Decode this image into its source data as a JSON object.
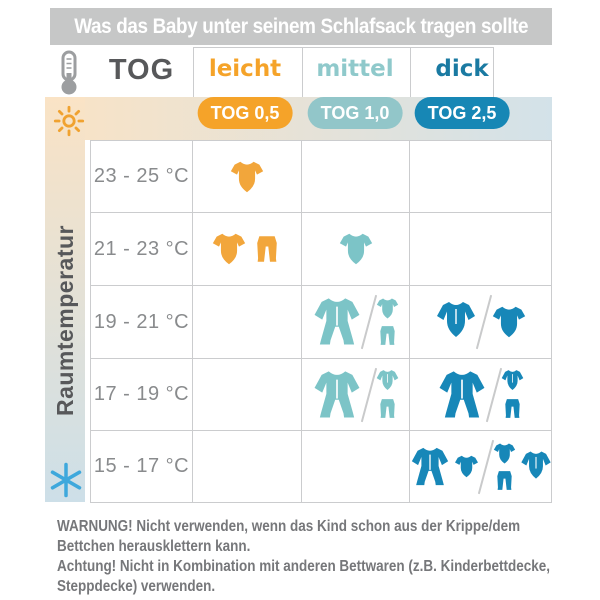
{
  "title": "Was das Baby unter seinem Schlafsack tragen sollte",
  "header": {
    "tog_label": "TOG",
    "columns": [
      {
        "id": "leicht",
        "label": "leicht",
        "badge": "TOG 0,5",
        "label_color": "#F5A329",
        "badge_color": "#F5A329",
        "icon_color": "#F2A63B"
      },
      {
        "id": "mittel",
        "label": "mittel",
        "badge": "TOG 1,0",
        "label_color": "#8FC9CB",
        "badge_color": "#92C6C9",
        "icon_color": "#7CC4C7"
      },
      {
        "id": "dick",
        "label": "dick",
        "badge": "TOG 2,5",
        "label_color": "#1A7AA2",
        "badge_color": "#1787B5",
        "icon_color": "#1787B8"
      }
    ]
  },
  "sidebar": {
    "label": "Raumtemperatur",
    "top_icon": "sun",
    "bottom_icon": "snowflake"
  },
  "rows": [
    {
      "temp": "23 - 25 °C",
      "cells": [
        {
          "groups": [
            [
              [
                "bodysuit"
              ]
            ]
          ]
        },
        {
          "groups": []
        },
        {
          "groups": []
        }
      ]
    },
    {
      "temp": "21 - 23 °C",
      "cells": [
        {
          "groups": [
            [
              [
                "bodysuit"
              ],
              [
                "pants"
              ]
            ]
          ]
        },
        {
          "groups": [
            [
              [
                "bodysuit"
              ]
            ]
          ]
        },
        {
          "groups": []
        }
      ]
    },
    {
      "temp": "19 - 21 °C",
      "cells": [
        {
          "groups": []
        },
        {
          "groups": [
            [
              [
                "sleepsuit"
              ]
            ],
            [
              [
                "bodysuit",
                "pants"
              ]
            ]
          ]
        },
        {
          "groups": [
            [
              [
                "longsleeve-bodysuit"
              ]
            ],
            [
              [
                "bodysuit"
              ]
            ]
          ]
        }
      ]
    },
    {
      "temp": "17 - 19 °C",
      "cells": [
        {
          "groups": []
        },
        {
          "groups": [
            [
              [
                "sleepsuit"
              ]
            ],
            [
              [
                "longsleeve-bodysuit",
                "pants"
              ]
            ]
          ]
        },
        {
          "groups": [
            [
              [
                "sleepsuit"
              ]
            ],
            [
              [
                "longsleeve-bodysuit",
                "pants"
              ]
            ]
          ]
        }
      ]
    },
    {
      "temp": "15 - 17 °C",
      "cells": [
        {
          "groups": []
        },
        {
          "groups": []
        },
        {
          "groups": [
            [
              [
                "sleepsuit"
              ],
              [
                "bodysuit"
              ]
            ],
            [
              [
                "bodysuit",
                "pants"
              ],
              [
                "longsleeve-bodysuit"
              ]
            ]
          ]
        }
      ]
    }
  ],
  "footer": {
    "lines": [
      "WARNUNG! Nicht verwenden, wenn das Kind schon aus der Krippe/dem",
      "Bettchen herausklettern kann.",
      "Achtung! Nicht in Kombination mit anderen Bettwaren (z.B. Kinderbettdecke,",
      "Steppdecke) verwenden."
    ]
  },
  "colors": {
    "title_bar": "#C6C7C7",
    "title_text": "#FFFFFF",
    "band_warm": "#FAE3C5",
    "band_cool": "#D3E2E9",
    "grid_line": "#CBCCCE",
    "text_dark": "#57585A",
    "text_temperature": "#898B8D",
    "text_footer": "#76777A",
    "sun": "#F0A230",
    "snowflake": "#3EA8DC",
    "thermometer": "#9C9EA0"
  }
}
